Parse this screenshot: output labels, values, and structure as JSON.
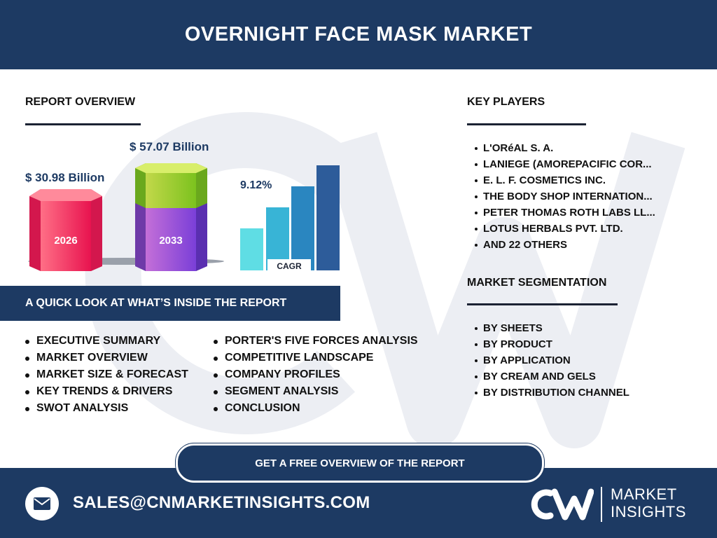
{
  "header": {
    "title": "OVERNIGHT FACE MASK MARKET"
  },
  "report_overview": {
    "title": "REPORT OVERVIEW",
    "value_2026": "$ 30.98 Billion",
    "value_2033": "$ 57.07 Billion",
    "year_2026": "2026",
    "year_2033": "2033",
    "cagr_value": "9.12%",
    "cagr_label": "CAGR"
  },
  "quick_look": {
    "title": "A QUICK LOOK AT WHAT’S INSIDE THE REPORT",
    "left_items": [
      "EXECUTIVE SUMMARY",
      "MARKET OVERVIEW",
      "MARKET SIZE & FORECAST",
      "KEY TRENDS & DRIVERS",
      "SWOT ANALYSIS"
    ],
    "right_items": [
      "PORTER'S FIVE FORCES ANALYSIS",
      "COMPETITIVE LANDSCAPE",
      "COMPANY PROFILES",
      "SEGMENT ANALYSIS",
      "CONCLUSION"
    ]
  },
  "key_players": {
    "title": "KEY PLAYERS",
    "items": [
      "L'ORéAL S. A.",
      "LANIEGE (AMOREPACIFIC COR...",
      "E. L. F. COSMETICS INC.",
      "THE BODY SHOP INTERNATION...",
      "PETER THOMAS ROTH LABS LL...",
      "LOTUS HERBALS PVT. LTD.",
      "AND 22 OTHERS"
    ]
  },
  "segmentation": {
    "title": "MARKET SEGMENTATION",
    "items": [
      "BY SHEETS",
      "BY PRODUCT",
      "BY APPLICATION",
      "BY CREAM AND GELS",
      "BY DISTRIBUTION CHANNEL"
    ]
  },
  "cta": {
    "label": "GET A FREE OVERVIEW OF THE REPORT"
  },
  "footer": {
    "email": "SALES@CNMARKETINSIGHTS.COM",
    "logo_line1": "MARKET",
    "logo_line2": "INSIGHTS",
    "mail_icon": "envelope-icon"
  },
  "colors": {
    "navy": "#1d3a63",
    "pink": "#f0305e",
    "purple": "#8e45d8",
    "lime": "#9bd42a",
    "teal": "#3fb8d8"
  }
}
